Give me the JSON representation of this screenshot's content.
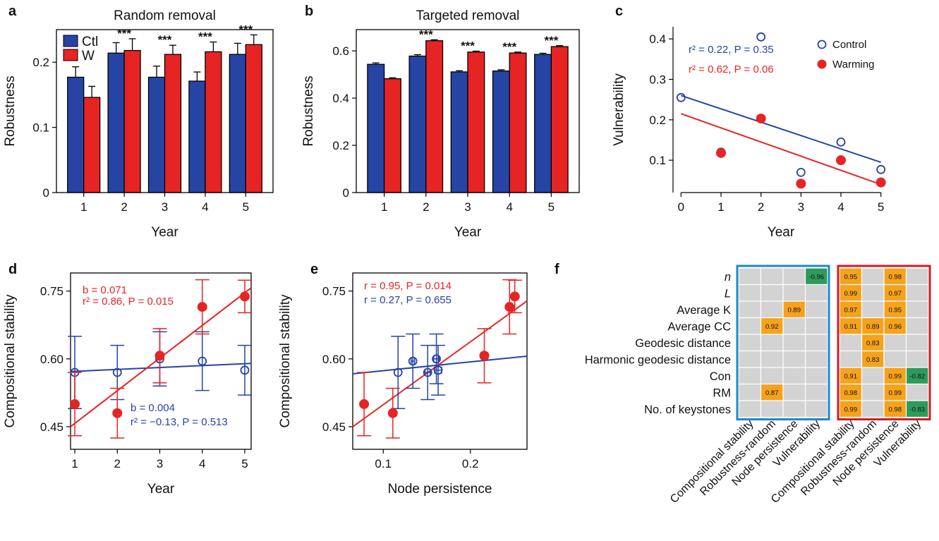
{
  "colors": {
    "control": "#2644a4",
    "warming": "#e62424",
    "positive": "#f5a21c",
    "negative": "#2e9a5c",
    "empty_cell": "#d3d3d3",
    "control_box": "#1e88c8",
    "warming_box": "#d01c24"
  },
  "chart_data": [
    {
      "id": "a",
      "panel_label": "a",
      "type": "bar",
      "title": "Random removal",
      "xlabel": "Year",
      "ylabel": "Robustness",
      "categories": [
        "1",
        "2",
        "3",
        "4",
        "5"
      ],
      "ylim": [
        0,
        0.25
      ],
      "yticks": [
        0,
        0.1,
        0.2
      ],
      "ytick_labels": [
        "0",
        "0.1",
        "0.2"
      ],
      "legend": {
        "position": "top-left",
        "entries": [
          "Ctl",
          "W"
        ]
      },
      "series": [
        {
          "name": "Ctl",
          "values": [
            0.177,
            0.214,
            0.177,
            0.171,
            0.212
          ],
          "errors": [
            0.016,
            0.016,
            0.017,
            0.014,
            0.017
          ]
        },
        {
          "name": "W",
          "values": [
            0.146,
            0.218,
            0.212,
            0.216,
            0.227
          ],
          "errors": [
            0.017,
            0.018,
            0.014,
            0.015,
            0.015
          ]
        }
      ],
      "significance": [
        "",
        "***",
        "***",
        "***",
        "***"
      ],
      "grid": false
    },
    {
      "id": "b",
      "panel_label": "b",
      "type": "bar",
      "title": "Targeted removal",
      "xlabel": "Year",
      "ylabel": "Robustness",
      "categories": [
        "1",
        "2",
        "3",
        "4",
        "5"
      ],
      "ylim": [
        0,
        0.69
      ],
      "yticks": [
        0,
        0.2,
        0.4,
        0.6
      ],
      "ytick_labels": [
        "0",
        "0.2",
        "0.4",
        "0.6"
      ],
      "series": [
        {
          "name": "Ctl",
          "values": [
            0.543,
            0.578,
            0.511,
            0.515,
            0.585
          ],
          "errors": [
            0.006,
            0.006,
            0.005,
            0.005,
            0.005
          ]
        },
        {
          "name": "W",
          "values": [
            0.482,
            0.643,
            0.595,
            0.591,
            0.618
          ],
          "errors": [
            0.004,
            0.004,
            0.004,
            0.004,
            0.004
          ]
        }
      ],
      "significance": [
        "",
        "***",
        "***",
        "***",
        "***"
      ],
      "grid": false
    },
    {
      "id": "c",
      "panel_label": "c",
      "type": "scatter",
      "xlabel": "Year",
      "ylabel": "Vulnerability",
      "xlim": [
        -0.2,
        5.2
      ],
      "ylim": [
        0.02,
        0.43
      ],
      "xticks": [
        0,
        1,
        2,
        3,
        4,
        5
      ],
      "xtick_labels": [
        "0",
        "1",
        "2",
        "3",
        "4",
        "5"
      ],
      "yticks": [
        0.1,
        0.2,
        0.3,
        0.4
      ],
      "ytick_labels": [
        "0.1",
        "0.2",
        "0.3",
        "0.4"
      ],
      "legend": {
        "position": "top-right",
        "entries": [
          "Control",
          "Warming"
        ]
      },
      "series": [
        {
          "name": "Control",
          "marker": "open-circle",
          "x": [
            0,
            1,
            2,
            3,
            4,
            5
          ],
          "y": [
            0.255,
            0.12,
            0.405,
            0.07,
            0.145,
            0.077
          ],
          "fit": [
            [
              0,
              0.26
            ],
            [
              5,
              0.095
            ]
          ]
        },
        {
          "name": "Warming",
          "marker": "filled-circle",
          "x": [
            1,
            2,
            3,
            4,
            5
          ],
          "y": [
            0.118,
            0.203,
            0.042,
            0.1,
            0.045
          ],
          "fit": [
            [
              0,
              0.215
            ],
            [
              5,
              0.04
            ]
          ]
        }
      ],
      "annotations": [
        {
          "series": "Control",
          "text": "r² = 0.22, P = 0.35"
        },
        {
          "series": "Warming",
          "text": "r² = 0.62, P = 0.06"
        }
      ],
      "grid": false
    },
    {
      "id": "d",
      "panel_label": "d",
      "type": "scatter",
      "xlabel": "Year",
      "ylabel": "Compositional stability",
      "xlim": [
        0.9,
        5.15
      ],
      "ylim": [
        0.4,
        0.79
      ],
      "xticks": [
        1,
        2,
        3,
        4,
        5
      ],
      "xtick_labels": [
        "1",
        "2",
        "3",
        "4",
        "5"
      ],
      "yticks": [
        0.45,
        0.6,
        0.75
      ],
      "ytick_labels": [
        "0.45",
        "0.60",
        "0.75"
      ],
      "series": [
        {
          "name": "Control",
          "marker": "open-circle",
          "x": [
            1,
            2,
            3,
            4,
            5
          ],
          "y": [
            0.57,
            0.57,
            0.6,
            0.595,
            0.575
          ],
          "yerr": [
            0.08,
            0.06,
            0.06,
            0.065,
            0.055
          ],
          "fit": [
            [
              0.9,
              0.572
            ],
            [
              5.15,
              0.59
            ]
          ]
        },
        {
          "name": "Warming",
          "marker": "filled-circle",
          "x": [
            1,
            2,
            3,
            4,
            5
          ],
          "y": [
            0.5,
            0.48,
            0.607,
            0.715,
            0.738
          ],
          "yerr": [
            0.07,
            0.055,
            0.06,
            0.06,
            0.036
          ],
          "fit": [
            [
              0.9,
              0.45
            ],
            [
              5.15,
              0.757
            ]
          ]
        }
      ],
      "annotations": [
        {
          "series": "Warming",
          "text": "b = 0.071"
        },
        {
          "series": "Warming",
          "text": "r² = 0.86, P = 0.015"
        },
        {
          "series": "Control",
          "text": "b = 0.004"
        },
        {
          "series": "Control",
          "text": "r² = −0.13, P = 0.513"
        }
      ],
      "grid": false
    },
    {
      "id": "e",
      "panel_label": "e",
      "type": "scatter",
      "xlabel": "Node persistence",
      "ylabel": "Compositional stability",
      "xlim": [
        0.065,
        0.265
      ],
      "ylim": [
        0.4,
        0.79
      ],
      "xticks": [
        0.1,
        0.2
      ],
      "xtick_labels": [
        "0.1",
        "0.2"
      ],
      "yticks": [
        0.45,
        0.6,
        0.75
      ],
      "ytick_labels": [
        "0.45",
        "0.60",
        "0.75"
      ],
      "series": [
        {
          "name": "Control",
          "marker": "open-circle",
          "x": [
            0.117,
            0.134,
            0.151,
            0.161,
            0.163
          ],
          "y": [
            0.57,
            0.595,
            0.57,
            0.6,
            0.575
          ],
          "yerr": [
            0.08,
            0.06,
            0.06,
            0.055,
            0.055
          ],
          "xerr": [
            0,
            0.002,
            0.003,
            0.003,
            0.004
          ],
          "fit": [
            [
              0.065,
              0.567
            ],
            [
              0.265,
              0.606
            ]
          ]
        },
        {
          "name": "Warming",
          "marker": "filled-circle",
          "x": [
            0.078,
            0.111,
            0.216,
            0.245,
            0.251
          ],
          "y": [
            0.5,
            0.48,
            0.607,
            0.715,
            0.738
          ],
          "yerr": [
            0.07,
            0.055,
            0.06,
            0.06,
            0.036
          ],
          "xerr": [
            0,
            0,
            0.004,
            0.003,
            0.003
          ],
          "fit": [
            [
              0.065,
              0.45
            ],
            [
              0.265,
              0.728
            ]
          ]
        }
      ],
      "annotations": [
        {
          "series": "Warming",
          "text": "r = 0.95, P = 0.014"
        },
        {
          "series": "Control",
          "text": "r = 0.27, P = 0.655"
        }
      ],
      "grid": false
    },
    {
      "id": "f",
      "panel_label": "f",
      "type": "heatmap",
      "rows": [
        "n",
        "L",
        "Average K",
        "Average CC",
        "Geodesic distance",
        "Harmonic geodesic distance",
        "Con",
        "RM",
        "No. of keystones"
      ],
      "italic_rows": [
        "n",
        "L"
      ],
      "columns": [
        "Compositional stability",
        "Robustness-random",
        "Node persistence",
        "Vulnerability"
      ],
      "blocks": [
        {
          "name": "Control",
          "values": [
            [
              null,
              null,
              null,
              -0.96
            ],
            [
              null,
              null,
              null,
              null
            ],
            [
              null,
              null,
              0.89,
              null
            ],
            [
              null,
              0.92,
              null,
              null
            ],
            [
              null,
              null,
              null,
              null
            ],
            [
              null,
              null,
              null,
              null
            ],
            [
              null,
              null,
              null,
              null
            ],
            [
              null,
              0.87,
              null,
              null
            ],
            [
              null,
              null,
              null,
              null
            ]
          ]
        },
        {
          "name": "Warming",
          "values": [
            [
              0.95,
              null,
              0.98,
              null
            ],
            [
              0.99,
              null,
              0.97,
              null
            ],
            [
              0.97,
              null,
              0.95,
              null
            ],
            [
              0.91,
              0.89,
              0.96,
              null
            ],
            [
              null,
              0.83,
              null,
              null
            ],
            [
              null,
              0.83,
              null,
              null
            ],
            [
              0.91,
              null,
              0.99,
              -0.82
            ],
            [
              0.98,
              null,
              0.99,
              null
            ],
            [
              0.99,
              null,
              0.98,
              -0.83
            ]
          ]
        }
      ]
    }
  ]
}
